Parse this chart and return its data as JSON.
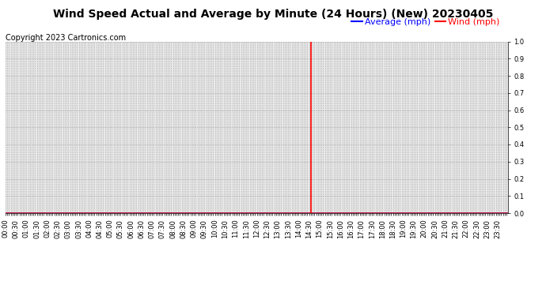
{
  "title": "Wind Speed Actual and Average by Minute (24 Hours) (New) 20230405",
  "copyright_text": "Copyright 2023 Cartronics.com",
  "legend_average_label": "Average (mph)",
  "legend_wind_label": "Wind (mph)",
  "legend_average_color": "blue",
  "legend_wind_color": "red",
  "ylim": [
    0.0,
    1.0
  ],
  "yticks": [
    0.0,
    0.1,
    0.2,
    0.3,
    0.4,
    0.5,
    0.6,
    0.7,
    0.8,
    0.9,
    1.0
  ],
  "vertical_line_minute": 875,
  "total_minutes": 1440,
  "background_color": "#ffffff",
  "plot_bg_color": "#e8e8e8",
  "grid_color": "#aaaaaa",
  "title_fontsize": 10,
  "copyright_fontsize": 7,
  "legend_fontsize": 8,
  "axis_tick_fontsize": 6,
  "blue_line_color": "blue",
  "red_line_color": "red",
  "vertical_line_color": "red"
}
